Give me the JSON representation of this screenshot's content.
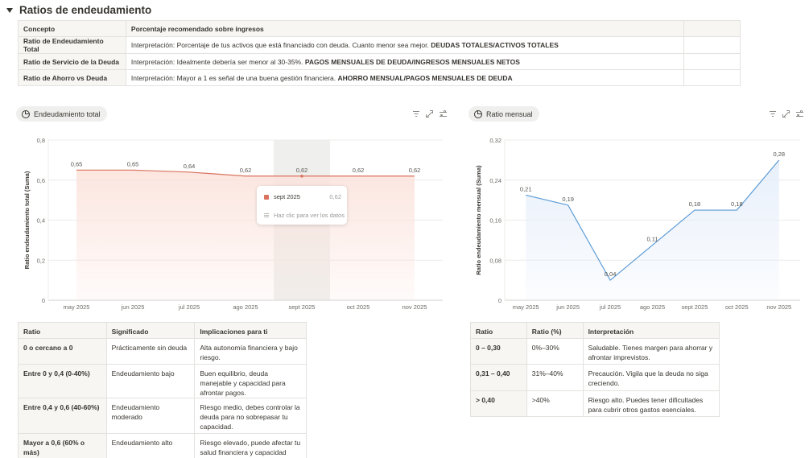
{
  "section": {
    "title": "Ratios de endeudamiento"
  },
  "top_table": {
    "headers": [
      "Concepto",
      "Porcentaje recomendado sobre ingresos",
      ""
    ],
    "rows": [
      {
        "concept": "Ratio de Endeudamiento Total",
        "text": "Interpretación: Porcentaje de tus activos que está financiado con deuda. Cuanto menor sea mejor.",
        "formula": "DEUDAS TOTALES/ACTIVOS TOTALES"
      },
      {
        "concept": "Ratio de Servicio de la Deuda",
        "text": "Interpretación: Idealmente debería ser menor al 30-35%.",
        "formula": "PAGOS MENSUALES DE DEUDA/INGRESOS MENSUALES NETOS"
      },
      {
        "concept": "Ratio de Ahorro vs Deuda",
        "text": "Interpretación: Mayor a 1 es señal de una buena gestión financiera.",
        "formula": "AHORRO MENSUAL/PAGOS MENSUALES DE DEUDA"
      }
    ]
  },
  "charts": {
    "left_pill": "Endeudamiento total",
    "right_pill": "Ratio mensual",
    "icons": {
      "pill": "pie-chart-icon",
      "filter": "filter-icon",
      "expand": "expand-icon",
      "settings": "sliders-icon"
    }
  },
  "tooltip": {
    "label": "sept 2025",
    "value": "0,62",
    "hint": "Haz clic para ver los datos"
  },
  "chart_data": [
    {
      "type": "area",
      "title": "",
      "ylabel": "Ratio endeudamiento total (Suma)",
      "xlabel": "",
      "categories": [
        "may 2025",
        "jun 2025",
        "jul 2025",
        "ago 2025",
        "sept 2025",
        "oct 2025",
        "nov 2025"
      ],
      "values": [
        0.65,
        0.65,
        0.64,
        0.62,
        0.62,
        0.62,
        0.62
      ],
      "labels": [
        "0,65",
        "0,65",
        "0,64",
        "0,62",
        "0,62",
        "0,62",
        "0,62"
      ],
      "ylim": [
        0,
        0.8
      ],
      "yticks": [
        "0",
        "0,2",
        "0,4",
        "0,6",
        "0,8"
      ],
      "yticks_values": [
        0,
        0.2,
        0.4,
        0.6,
        0.8
      ],
      "highlight_index": 4,
      "color": "#d9735e",
      "fill": "#fbe3dc",
      "grid": true
    },
    {
      "type": "area",
      "title": "",
      "ylabel": "Ratio endeudamiento mensual (Suma)",
      "xlabel": "",
      "categories": [
        "may 2025",
        "jun 2025",
        "jul 2025",
        "ago 2025",
        "sept 2025",
        "oct 2025",
        "nov 2025"
      ],
      "values": [
        0.21,
        0.19,
        0.04,
        0.11,
        0.18,
        0.18,
        0.28
      ],
      "labels": [
        "0,21",
        "0,19",
        "0,04",
        "0,11",
        "0,18",
        "0,18",
        "0,28"
      ],
      "ylim": [
        0,
        0.32
      ],
      "yticks": [
        "0",
        "0,08",
        "0,16",
        "0,24",
        "0,32"
      ],
      "yticks_values": [
        0,
        0.08,
        0.16,
        0.24,
        0.32
      ],
      "color": "#5b9bd5",
      "fill": "#e6eefa",
      "grid": true
    }
  ],
  "ratio_table": {
    "headers": [
      "Ratio",
      "Significado",
      "Implicaciones para ti"
    ],
    "rows": [
      [
        "0 o cercano a 0",
        "Prácticamente sin deuda",
        "Alta autonomía financiera y bajo riesgo."
      ],
      [
        "Entre 0 y 0,4 (0-40%)",
        "Endeudamiento bajo",
        "Buen equilibrio, deuda manejable y capacidad para afrontar pagos."
      ],
      [
        "Entre 0,4 y 0,6 (40-60%)",
        "Endeudamiento moderado",
        "Riesgo medio, debes controlar la deuda para no sobrepasar tu capacidad."
      ],
      [
        "Mayor a 0,6 (60% o más)",
        "Endeudamiento alto",
        "Riesgo elevado, puede afectar tu salud financiera y capacidad para nuevas inversiones o gastos."
      ]
    ]
  },
  "interp_table": {
    "headers": [
      "Ratio",
      "Ratio (%)",
      "Interpretación"
    ],
    "rows": [
      [
        "0 – 0,30",
        "0%–30%",
        "Saludable. Tienes margen para ahorrar y afrontar imprevistos."
      ],
      [
        "0,31 – 0,40",
        "31%–40%",
        "Precaución. Vigila que la deuda no siga creciendo."
      ],
      [
        "> 0,40",
        ">40%",
        "Riesgo alto. Puedes tener dificultades para cubrir otros gastos esenciales."
      ]
    ]
  }
}
